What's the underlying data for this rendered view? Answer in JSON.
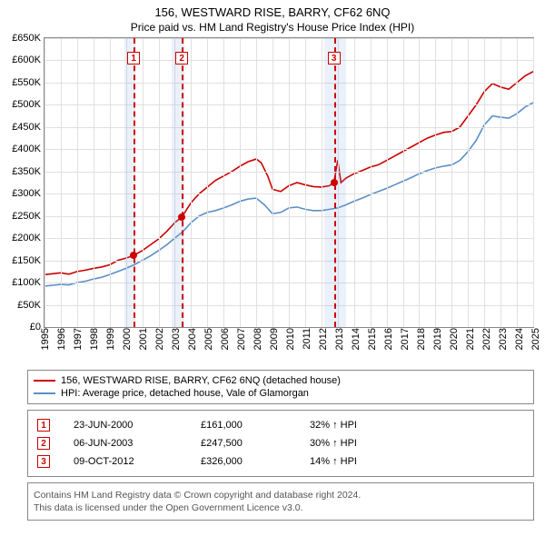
{
  "title": "156, WESTWARD RISE, BARRY, CF62 6NQ",
  "subtitle": "Price paid vs. HM Land Registry's House Price Index (HPI)",
  "chart": {
    "type": "line",
    "ylim": [
      0,
      650000
    ],
    "ytick_step": 50000,
    "yticks": [
      "£0",
      "£50K",
      "£100K",
      "£150K",
      "£200K",
      "£250K",
      "£300K",
      "£350K",
      "£400K",
      "£450K",
      "£500K",
      "£550K",
      "£600K",
      "£650K"
    ],
    "xlim": [
      1995,
      2025
    ],
    "xticks": [
      1995,
      1996,
      1997,
      1998,
      1999,
      2000,
      2001,
      2002,
      2003,
      2004,
      2005,
      2006,
      2007,
      2008,
      2009,
      2010,
      2011,
      2012,
      2013,
      2014,
      2015,
      2016,
      2017,
      2018,
      2019,
      2020,
      2021,
      2022,
      2023,
      2024,
      2025
    ],
    "background_color": "#ffffff",
    "grid_color": "#e0e0e0",
    "colors": {
      "pricepaid": "#cc0000",
      "hpi": "#5b8fc7"
    },
    "line_width": 1.6,
    "shade_color": "rgba(120,160,220,0.15)",
    "shade_ranges": [
      [
        1999.9,
        2000.6
      ],
      [
        2002.8,
        2003.6
      ],
      [
        2012.2,
        2013.5
      ]
    ],
    "markers": [
      {
        "n": "1",
        "x": 2000.47,
        "box_y": 620000,
        "dot": [
          2000.47,
          161000
        ]
      },
      {
        "n": "2",
        "x": 2003.43,
        "box_y": 620000,
        "dot": [
          2003.43,
          247500
        ]
      },
      {
        "n": "3",
        "x": 2012.77,
        "box_y": 620000,
        "dot": [
          2012.77,
          326000
        ]
      }
    ],
    "series": {
      "pricepaid": [
        [
          1995.0,
          118000
        ],
        [
          1995.5,
          120000
        ],
        [
          1996.0,
          122000
        ],
        [
          1996.5,
          119000
        ],
        [
          1997.0,
          125000
        ],
        [
          1997.5,
          128000
        ],
        [
          1998.0,
          132000
        ],
        [
          1998.5,
          135000
        ],
        [
          1999.0,
          140000
        ],
        [
          1999.5,
          150000
        ],
        [
          2000.0,
          155000
        ],
        [
          2000.47,
          161000
        ],
        [
          2001.0,
          172000
        ],
        [
          2001.5,
          185000
        ],
        [
          2002.0,
          198000
        ],
        [
          2002.5,
          215000
        ],
        [
          2003.0,
          235000
        ],
        [
          2003.43,
          247500
        ],
        [
          2004.0,
          280000
        ],
        [
          2004.5,
          300000
        ],
        [
          2005.0,
          315000
        ],
        [
          2005.5,
          330000
        ],
        [
          2006.0,
          340000
        ],
        [
          2006.5,
          350000
        ],
        [
          2007.0,
          362000
        ],
        [
          2007.5,
          372000
        ],
        [
          2008.0,
          378000
        ],
        [
          2008.3,
          370000
        ],
        [
          2008.7,
          340000
        ],
        [
          2009.0,
          310000
        ],
        [
          2009.5,
          305000
        ],
        [
          2010.0,
          318000
        ],
        [
          2010.5,
          325000
        ],
        [
          2011.0,
          320000
        ],
        [
          2011.5,
          316000
        ],
        [
          2012.0,
          315000
        ],
        [
          2012.5,
          318000
        ],
        [
          2012.77,
          326000
        ],
        [
          2013.0,
          375000
        ],
        [
          2013.2,
          325000
        ],
        [
          2013.5,
          335000
        ],
        [
          2014.0,
          345000
        ],
        [
          2014.5,
          352000
        ],
        [
          2015.0,
          360000
        ],
        [
          2015.5,
          365000
        ],
        [
          2016.0,
          375000
        ],
        [
          2016.5,
          385000
        ],
        [
          2017.0,
          395000
        ],
        [
          2017.5,
          405000
        ],
        [
          2018.0,
          415000
        ],
        [
          2018.5,
          425000
        ],
        [
          2019.0,
          432000
        ],
        [
          2019.5,
          438000
        ],
        [
          2020.0,
          440000
        ],
        [
          2020.5,
          450000
        ],
        [
          2021.0,
          475000
        ],
        [
          2021.5,
          500000
        ],
        [
          2022.0,
          530000
        ],
        [
          2022.5,
          548000
        ],
        [
          2023.0,
          540000
        ],
        [
          2023.5,
          535000
        ],
        [
          2024.0,
          550000
        ],
        [
          2024.5,
          565000
        ],
        [
          2025.0,
          575000
        ]
      ],
      "hpi": [
        [
          1995.0,
          92000
        ],
        [
          1995.5,
          94000
        ],
        [
          1996.0,
          96000
        ],
        [
          1996.5,
          95000
        ],
        [
          1997.0,
          100000
        ],
        [
          1997.5,
          103000
        ],
        [
          1998.0,
          108000
        ],
        [
          1998.5,
          112000
        ],
        [
          1999.0,
          118000
        ],
        [
          1999.5,
          125000
        ],
        [
          2000.0,
          132000
        ],
        [
          2000.5,
          140000
        ],
        [
          2001.0,
          150000
        ],
        [
          2001.5,
          160000
        ],
        [
          2002.0,
          172000
        ],
        [
          2002.5,
          185000
        ],
        [
          2003.0,
          200000
        ],
        [
          2003.5,
          215000
        ],
        [
          2004.0,
          235000
        ],
        [
          2004.5,
          250000
        ],
        [
          2005.0,
          258000
        ],
        [
          2005.5,
          262000
        ],
        [
          2006.0,
          268000
        ],
        [
          2006.5,
          275000
        ],
        [
          2007.0,
          283000
        ],
        [
          2007.5,
          288000
        ],
        [
          2008.0,
          290000
        ],
        [
          2008.5,
          275000
        ],
        [
          2009.0,
          255000
        ],
        [
          2009.5,
          258000
        ],
        [
          2010.0,
          268000
        ],
        [
          2010.5,
          270000
        ],
        [
          2011.0,
          265000
        ],
        [
          2011.5,
          262000
        ],
        [
          2012.0,
          262000
        ],
        [
          2012.5,
          265000
        ],
        [
          2013.0,
          268000
        ],
        [
          2013.5,
          275000
        ],
        [
          2014.0,
          283000
        ],
        [
          2014.5,
          290000
        ],
        [
          2015.0,
          298000
        ],
        [
          2015.5,
          305000
        ],
        [
          2016.0,
          312000
        ],
        [
          2016.5,
          320000
        ],
        [
          2017.0,
          328000
        ],
        [
          2017.5,
          336000
        ],
        [
          2018.0,
          345000
        ],
        [
          2018.5,
          352000
        ],
        [
          2019.0,
          358000
        ],
        [
          2019.5,
          362000
        ],
        [
          2020.0,
          365000
        ],
        [
          2020.5,
          375000
        ],
        [
          2021.0,
          395000
        ],
        [
          2021.5,
          420000
        ],
        [
          2022.0,
          455000
        ],
        [
          2022.5,
          475000
        ],
        [
          2023.0,
          472000
        ],
        [
          2023.5,
          470000
        ],
        [
          2024.0,
          480000
        ],
        [
          2024.5,
          495000
        ],
        [
          2025.0,
          505000
        ]
      ]
    }
  },
  "legend": [
    {
      "color": "#cc0000",
      "label": "156, WESTWARD RISE, BARRY, CF62 6NQ (detached house)"
    },
    {
      "color": "#5b8fc7",
      "label": "HPI: Average price, detached house, Vale of Glamorgan"
    }
  ],
  "events": [
    {
      "n": "1",
      "date": "23-JUN-2000",
      "price": "£161,000",
      "delta": "32% ↑ HPI"
    },
    {
      "n": "2",
      "date": "06-JUN-2003",
      "price": "£247,500",
      "delta": "30% ↑ HPI"
    },
    {
      "n": "3",
      "date": "09-OCT-2012",
      "price": "£326,000",
      "delta": "14% ↑ HPI"
    }
  ],
  "footer": {
    "line1": "Contains HM Land Registry data © Crown copyright and database right 2024.",
    "line2": "This data is licensed under the Open Government Licence v3.0."
  }
}
